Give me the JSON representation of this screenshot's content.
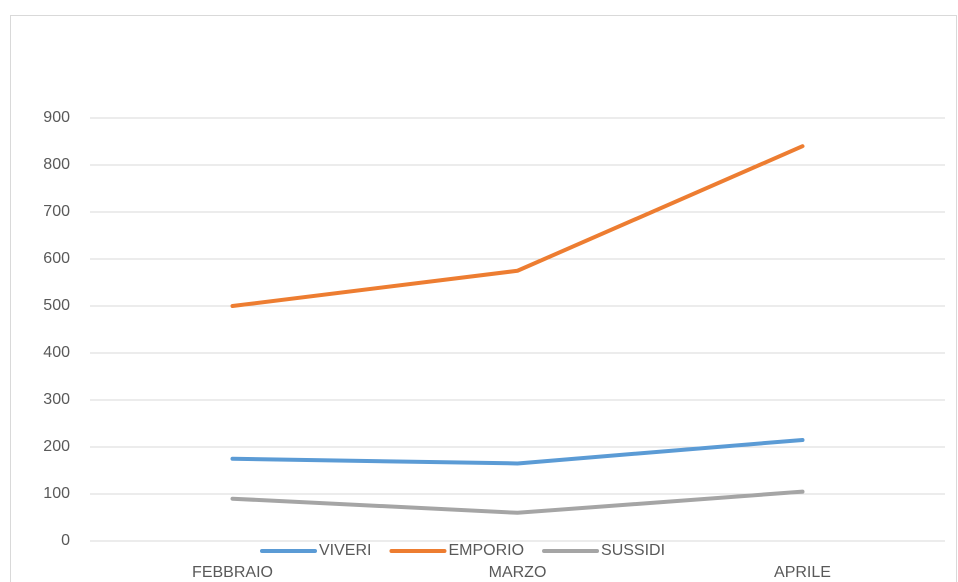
{
  "chart_data": {
    "type": "line",
    "categories": [
      "FEBBRAIO",
      "MARZO",
      "APRILE"
    ],
    "series": [
      {
        "name": "VIVERI",
        "color": "#5b9bd5",
        "values": [
          175,
          165,
          215
        ]
      },
      {
        "name": "EMPORIO",
        "color": "#ed7d31",
        "values": [
          500,
          575,
          840
        ]
      },
      {
        "name": "SUSSIDI",
        "color": "#a5a5a5",
        "values": [
          90,
          60,
          105
        ]
      }
    ],
    "ylim": [
      0,
      900
    ],
    "yticks": [
      0,
      100,
      200,
      300,
      400,
      500,
      600,
      700,
      800,
      900
    ],
    "grid": true,
    "legend": "bottom"
  }
}
